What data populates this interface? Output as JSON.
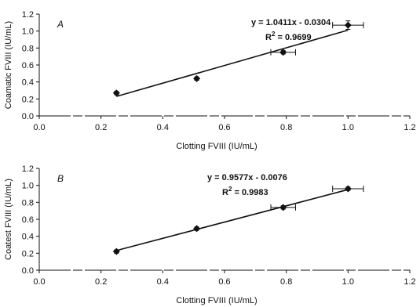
{
  "chart_data": [
    {
      "type": "scatter",
      "panel_label": "A",
      "xlabel": "Clotting FVIII (IU/mL)",
      "ylabel": "Coamatic FVIII (IU/mL)",
      "xlim": [
        0.0,
        1.2
      ],
      "ylim": [
        0.0,
        1.2
      ],
      "xticks": [
        "0.0",
        "0.2",
        "0.4",
        "0.6",
        "0.8",
        "1.0",
        "1.2"
      ],
      "yticks": [
        "0.0",
        "0.2",
        "0.4",
        "0.6",
        "0.8",
        "1.0",
        "1.2"
      ],
      "equation": "y = 1.0411x - 0.0304",
      "r2_label": "R",
      "r2_sup": "2",
      "r2_value": " = 0.9699",
      "trendline": {
        "slope": 1.0411,
        "intercept": -0.0304,
        "x_range": [
          0.25,
          1.0
        ]
      },
      "points": [
        {
          "x": 0.25,
          "y": 0.27,
          "xerr": 0.0,
          "yerr": 0.02
        },
        {
          "x": 0.51,
          "y": 0.44,
          "xerr": 0.0,
          "yerr": 0.02
        },
        {
          "x": 0.79,
          "y": 0.75,
          "xerr": 0.04,
          "yerr": 0.02
        },
        {
          "x": 1.0,
          "y": 1.07,
          "xerr": 0.05,
          "yerr": 0.05
        }
      ]
    },
    {
      "type": "scatter",
      "panel_label": "B",
      "xlabel": "Clotting FVIII (IU/mL)",
      "ylabel": "Coatest FVIII (IU/mL)",
      "xlim": [
        0.0,
        1.2
      ],
      "ylim": [
        0.0,
        1.2
      ],
      "xticks": [
        "0.0",
        "0.2",
        "0.4",
        "0.6",
        "0.8",
        "1.0",
        "1.2"
      ],
      "yticks": [
        "0.0",
        "0.2",
        "0.4",
        "0.6",
        "0.8",
        "1.0",
        "1.2"
      ],
      "equation": "y = 0.9577x - 0.0076",
      "r2_label": "R",
      "r2_sup": "2",
      "r2_value": " = 0.9983",
      "trendline": {
        "slope": 0.9577,
        "intercept": -0.0076,
        "x_range": [
          0.25,
          1.0
        ]
      },
      "points": [
        {
          "x": 0.25,
          "y": 0.22,
          "xerr": 0.0,
          "yerr": 0.02
        },
        {
          "x": 0.51,
          "y": 0.49,
          "xerr": 0.0,
          "yerr": 0.02
        },
        {
          "x": 0.79,
          "y": 0.74,
          "xerr": 0.04,
          "yerr": 0.02
        },
        {
          "x": 1.0,
          "y": 0.96,
          "xerr": 0.05,
          "yerr": 0.02
        }
      ]
    }
  ]
}
